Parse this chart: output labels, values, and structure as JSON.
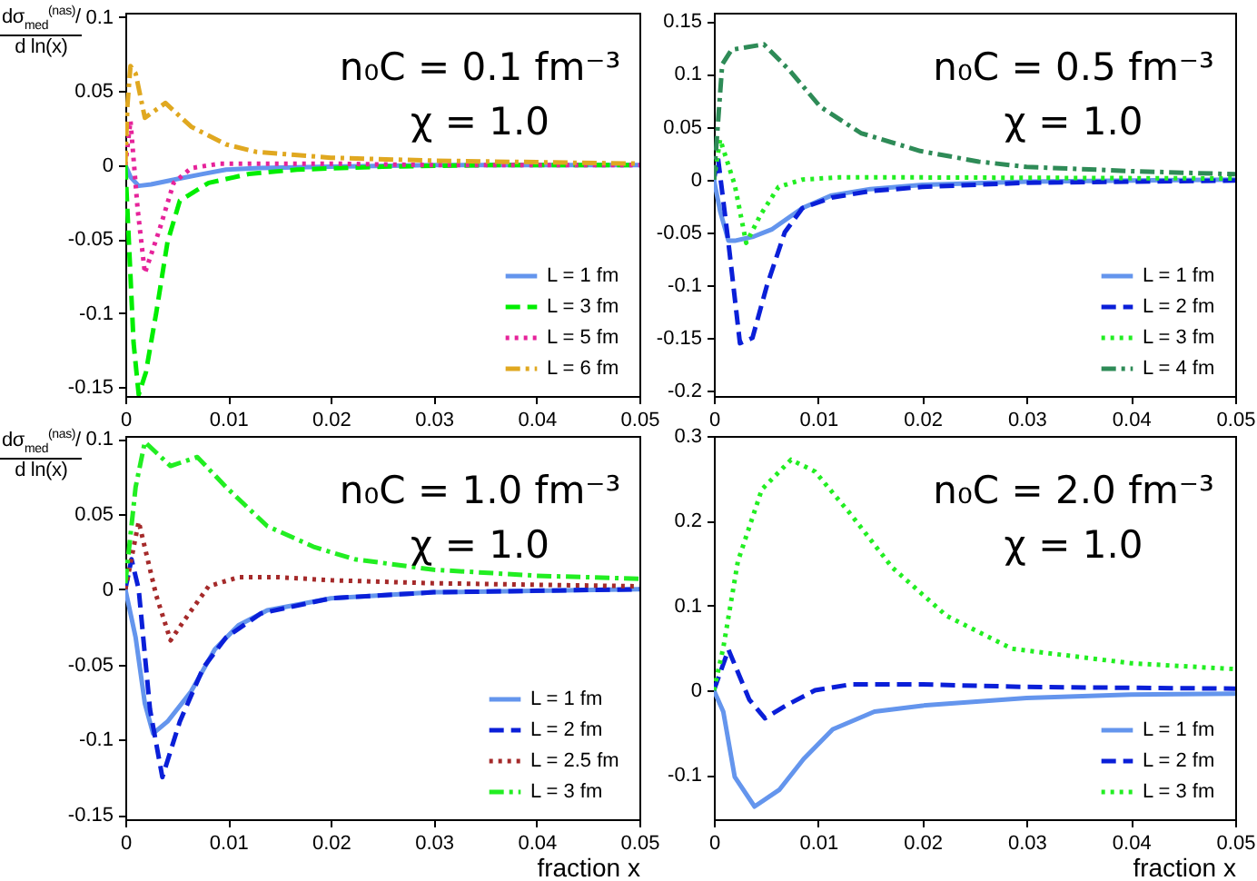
{
  "chart_data": [
    {
      "type": "line",
      "ylabel": "dσ$_{med}$$^{(nas)}$/d ln(x)",
      "annotations": [
        "n₀C = 0.1 fm⁻³",
        "χ = 1.0"
      ],
      "xlim": [
        0,
        0.05
      ],
      "xticks": [
        0,
        0.01,
        0.02,
        0.03,
        0.04,
        0.05
      ],
      "ylim": [
        -0.156,
        0.103
      ],
      "yticks": [
        -0.15,
        -0.1,
        -0.05,
        0,
        0.05,
        0.1
      ],
      "legend": "bottom right",
      "series": [
        {
          "name": "L = 1 fm",
          "color": "#6495ed",
          "line_style": "solid",
          "x": [
            0,
            0.0005,
            0.0013,
            0.0025,
            0.0053,
            0.0075,
            0.0098,
            0.013,
            0.02,
            0.03,
            0.04,
            0.05
          ],
          "values": [
            0,
            -0.008,
            -0.014,
            -0.013,
            -0.009,
            -0.006,
            -0.003,
            -0.002,
            -0.001,
            0,
            0,
            0
          ]
        },
        {
          "name": "L = 3 fm",
          "color": "#00ee00",
          "line_style": "dashed",
          "x": [
            0,
            0.0004,
            0.0008,
            0.0013,
            0.002,
            0.003,
            0.0041,
            0.0053,
            0.0081,
            0.012,
            0.0167,
            0.025,
            0.035,
            0.05
          ],
          "values": [
            0,
            -0.06,
            -0.12,
            -0.155,
            -0.14,
            -0.1,
            -0.052,
            -0.024,
            -0.012,
            -0.006,
            -0.003,
            -0.001,
            0,
            0
          ]
        },
        {
          "name": "L = 5 fm",
          "color": "#e6239a",
          "line_style": "dotted",
          "x": [
            0,
            0.0005,
            0.0012,
            0.0019,
            0.0033,
            0.0047,
            0.0064,
            0.0092,
            0.02,
            0.03,
            0.05
          ],
          "values": [
            0,
            0.03,
            -0.03,
            -0.073,
            -0.044,
            -0.012,
            -0.002,
            0.001,
            0.001,
            0,
            0
          ]
        },
        {
          "name": "L = 6 fm",
          "color": "#e0a820",
          "line_style": "dashdot",
          "x": [
            0,
            0.0002,
            0.0005,
            0.001,
            0.0019,
            0.0039,
            0.0064,
            0.0098,
            0.0127,
            0.02,
            0.03,
            0.04,
            0.05
          ],
          "values": [
            0,
            0.04,
            0.067,
            0.062,
            0.032,
            0.042,
            0.026,
            0.014,
            0.009,
            0.005,
            0.003,
            0.002,
            0.001
          ]
        }
      ]
    },
    {
      "type": "line",
      "annotations": [
        "n₀C = 0.5 fm⁻³",
        "χ = 1.0"
      ],
      "xlim": [
        0,
        0.05
      ],
      "xticks": [
        0,
        0.01,
        0.02,
        0.03,
        0.04,
        0.05
      ],
      "ylim": [
        -0.205,
        0.158
      ],
      "yticks": [
        -0.2,
        -0.15,
        -0.1,
        -0.05,
        0,
        0.05,
        0.1,
        0.15
      ],
      "legend": "bottom right",
      "series": [
        {
          "name": "L = 1 fm",
          "color": "#6495ed",
          "line_style": "solid",
          "x": [
            0,
            0.0006,
            0.0014,
            0.002,
            0.0038,
            0.0056,
            0.0085,
            0.0113,
            0.015,
            0.02,
            0.03,
            0.05
          ],
          "values": [
            0,
            -0.03,
            -0.058,
            -0.058,
            -0.054,
            -0.047,
            -0.027,
            -0.015,
            -0.009,
            -0.005,
            -0.002,
            0
          ]
        },
        {
          "name": "L = 2 fm",
          "color": "#0a1fd8",
          "line_style": "dashed",
          "x": [
            0,
            0.0004,
            0.0009,
            0.0014,
            0.0025,
            0.0037,
            0.0051,
            0.0068,
            0.0085,
            0.0113,
            0.015,
            0.02,
            0.03,
            0.05
          ],
          "values": [
            0,
            0.02,
            -0.02,
            -0.06,
            -0.155,
            -0.15,
            -0.1,
            -0.05,
            -0.027,
            -0.017,
            -0.011,
            -0.007,
            -0.003,
            -0.001
          ]
        },
        {
          "name": "L = 3 fm",
          "color": "#22ee22",
          "line_style": "dotted",
          "x": [
            0,
            0.0006,
            0.002,
            0.0031,
            0.0045,
            0.0062,
            0.0085,
            0.012,
            0.02,
            0.05
          ],
          "values": [
            0,
            0.038,
            -0.005,
            -0.06,
            -0.033,
            -0.007,
            0,
            0.002,
            0.002,
            0.001
          ]
        },
        {
          "name": "L = 4 fm",
          "color": "#2e8b57",
          "line_style": "dashdot",
          "x": [
            0,
            0.0008,
            0.0017,
            0.0048,
            0.0073,
            0.0102,
            0.0141,
            0.0198,
            0.0254,
            0.03,
            0.04,
            0.05
          ],
          "values": [
            0,
            0.109,
            0.123,
            0.128,
            0.103,
            0.069,
            0.044,
            0.027,
            0.017,
            0.012,
            0.008,
            0.005
          ]
        }
      ]
    },
    {
      "type": "line",
      "ylabel": "dσ$_{med}$$^{(nas)}$/d ln(x)",
      "xlabel": "fraction  x",
      "annotations": [
        "n₀C = 1.0 fm⁻³",
        "χ = 1.0"
      ],
      "xlim": [
        0,
        0.05
      ],
      "xticks": [
        0,
        0.01,
        0.02,
        0.03,
        0.04,
        0.05
      ],
      "ylim": [
        -0.153,
        0.102
      ],
      "yticks": [
        -0.15,
        -0.1,
        -0.05,
        0,
        0.05,
        0.1
      ],
      "legend": "bottom right",
      "series": [
        {
          "name": "L = 1 fm",
          "color": "#6495ed",
          "line_style": "solid",
          "x": [
            0,
            0.001,
            0.0019,
            0.0027,
            0.0041,
            0.0064,
            0.0087,
            0.011,
            0.0138,
            0.02,
            0.03,
            0.05
          ],
          "values": [
            0,
            -0.032,
            -0.076,
            -0.096,
            -0.088,
            -0.068,
            -0.04,
            -0.024,
            -0.014,
            -0.006,
            -0.002,
            0
          ]
        },
        {
          "name": "L = 2 fm",
          "color": "#0a1fd8",
          "line_style": "dashed",
          "x": [
            0,
            0.0006,
            0.0013,
            0.0024,
            0.0036,
            0.0053,
            0.0076,
            0.0098,
            0.0132,
            0.02,
            0.03,
            0.05
          ],
          "values": [
            0,
            0.02,
            0,
            -0.08,
            -0.125,
            -0.088,
            -0.052,
            -0.032,
            -0.016,
            -0.006,
            -0.002,
            0
          ]
        },
        {
          "name": "L = 2.5 fm",
          "color": "#a52a2a",
          "line_style": "dotted",
          "x": [
            0,
            0.0013,
            0.003,
            0.0044,
            0.0058,
            0.0081,
            0.011,
            0.015,
            0.02,
            0.03,
            0.05
          ],
          "values": [
            0,
            0.045,
            -0.004,
            -0.034,
            -0.02,
            0.002,
            0.008,
            0.008,
            0.006,
            0.004,
            0.002
          ]
        },
        {
          "name": "L = 3 fm",
          "color": "#22ee22",
          "line_style": "dashdot",
          "x": [
            0,
            0.001,
            0.0019,
            0.0044,
            0.007,
            0.0098,
            0.0138,
            0.0184,
            0.0223,
            0.03,
            0.04,
            0.05
          ],
          "values": [
            0.004,
            0.068,
            0.098,
            0.082,
            0.088,
            0.068,
            0.042,
            0.028,
            0.02,
            0.013,
            0.009,
            0.007
          ]
        }
      ]
    },
    {
      "type": "line",
      "xlabel": "fraction  x",
      "annotations": [
        "n₀C = 2.0 fm⁻³",
        "χ = 1.0"
      ],
      "xlim": [
        0,
        0.05
      ],
      "xticks": [
        0,
        0.01,
        0.02,
        0.03,
        0.04,
        0.05
      ],
      "ylim": [
        -0.152,
        0.3
      ],
      "yticks": [
        -0.1,
        0,
        0.1,
        0.2,
        0.3
      ],
      "legend": "bottom right",
      "series": [
        {
          "name": "L = 1 fm",
          "color": "#6495ed",
          "line_style": "solid",
          "x": [
            0,
            0.0009,
            0.002,
            0.0039,
            0.0063,
            0.0086,
            0.0114,
            0.0154,
            0.02,
            0.03,
            0.04,
            0.05
          ],
          "values": [
            0,
            -0.025,
            -0.102,
            -0.137,
            -0.117,
            -0.081,
            -0.046,
            -0.025,
            -0.018,
            -0.009,
            -0.005,
            -0.004
          ]
        },
        {
          "name": "L = 2 fm",
          "color": "#0a1fd8",
          "line_style": "dashed",
          "x": [
            0,
            0.0014,
            0.0034,
            0.0049,
            0.0069,
            0.0097,
            0.0131,
            0.02,
            0.03,
            0.05
          ],
          "values": [
            0,
            0.048,
            -0.011,
            -0.033,
            -0.018,
            0,
            0.007,
            0.007,
            0.004,
            0.002
          ]
        },
        {
          "name": "L = 3 fm",
          "color": "#22ee22",
          "line_style": "dotted",
          "x": [
            0,
            0.0009,
            0.0023,
            0.0046,
            0.0074,
            0.0097,
            0.0131,
            0.0171,
            0.0223,
            0.0286,
            0.04,
            0.05
          ],
          "values": [
            0,
            0.05,
            0.152,
            0.237,
            0.272,
            0.258,
            0.208,
            0.145,
            0.088,
            0.049,
            0.032,
            0.025
          ]
        }
      ]
    }
  ]
}
